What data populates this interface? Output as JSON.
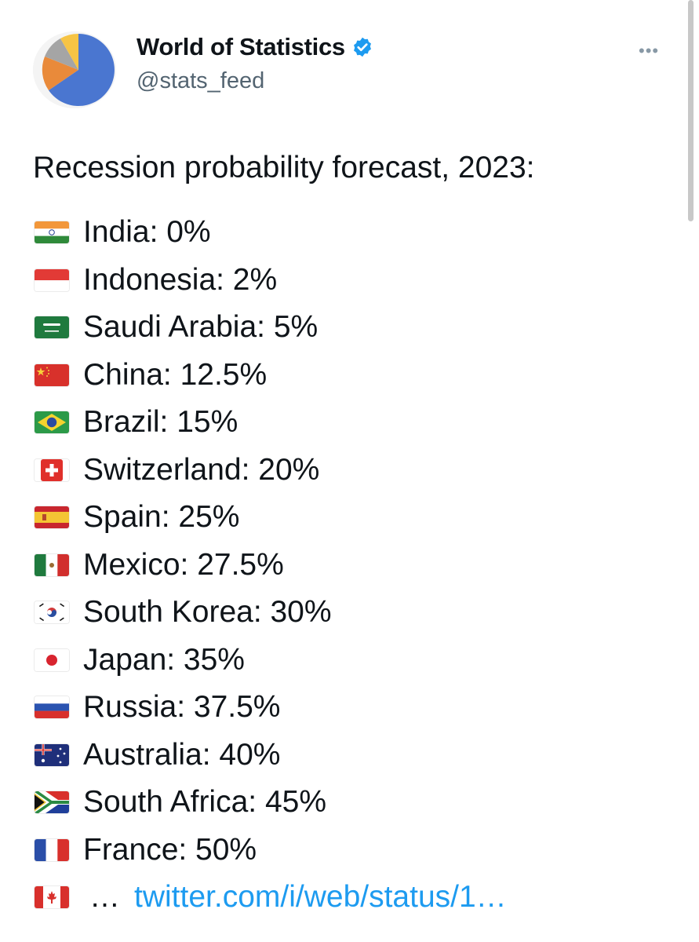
{
  "header": {
    "display_name": "World of Statistics",
    "handle": "@stats_feed",
    "avatar_icon": "pie-chart-icon",
    "verified_icon": "verified-badge-icon",
    "more_icon": "more-options-icon",
    "more_label": "•••"
  },
  "tweet": {
    "heading": "Recession probability forecast, 2023:",
    "items": [
      {
        "flag_icon": "india-flag-icon",
        "text": "India: 0%"
      },
      {
        "flag_icon": "indonesia-flag-icon",
        "text": "Indonesia: 2%"
      },
      {
        "flag_icon": "saudi-arabia-flag-icon",
        "text": "Saudi Arabia: 5%"
      },
      {
        "flag_icon": "china-flag-icon",
        "text": "China: 12.5%"
      },
      {
        "flag_icon": "brazil-flag-icon",
        "text": "Brazil: 15%"
      },
      {
        "flag_icon": "switzerland-flag-icon",
        "text": "Switzerland: 20%"
      },
      {
        "flag_icon": "spain-flag-icon",
        "text": "Spain: 25%"
      },
      {
        "flag_icon": "mexico-flag-icon",
        "text": "Mexico: 27.5%"
      },
      {
        "flag_icon": "south-korea-flag-icon",
        "text": "South Korea: 30%"
      },
      {
        "flag_icon": "japan-flag-icon",
        "text": "Japan: 35%"
      },
      {
        "flag_icon": "russia-flag-icon",
        "text": "Russia: 37.5%"
      },
      {
        "flag_icon": "australia-flag-icon",
        "text": "Australia: 40%"
      },
      {
        "flag_icon": "south-africa-flag-icon",
        "text": "South Africa: 45%"
      },
      {
        "flag_icon": "france-flag-icon",
        "text": "France: 50%"
      }
    ],
    "truncated": {
      "flag_icon": "canada-flag-icon",
      "ellipsis": "…",
      "link_text": "twitter.com/i/web/status/1…"
    }
  },
  "colors": {
    "link": "#1d9bf0",
    "text": "#0f1419",
    "secondary": "#536471",
    "verified": "#1d9bf0"
  }
}
